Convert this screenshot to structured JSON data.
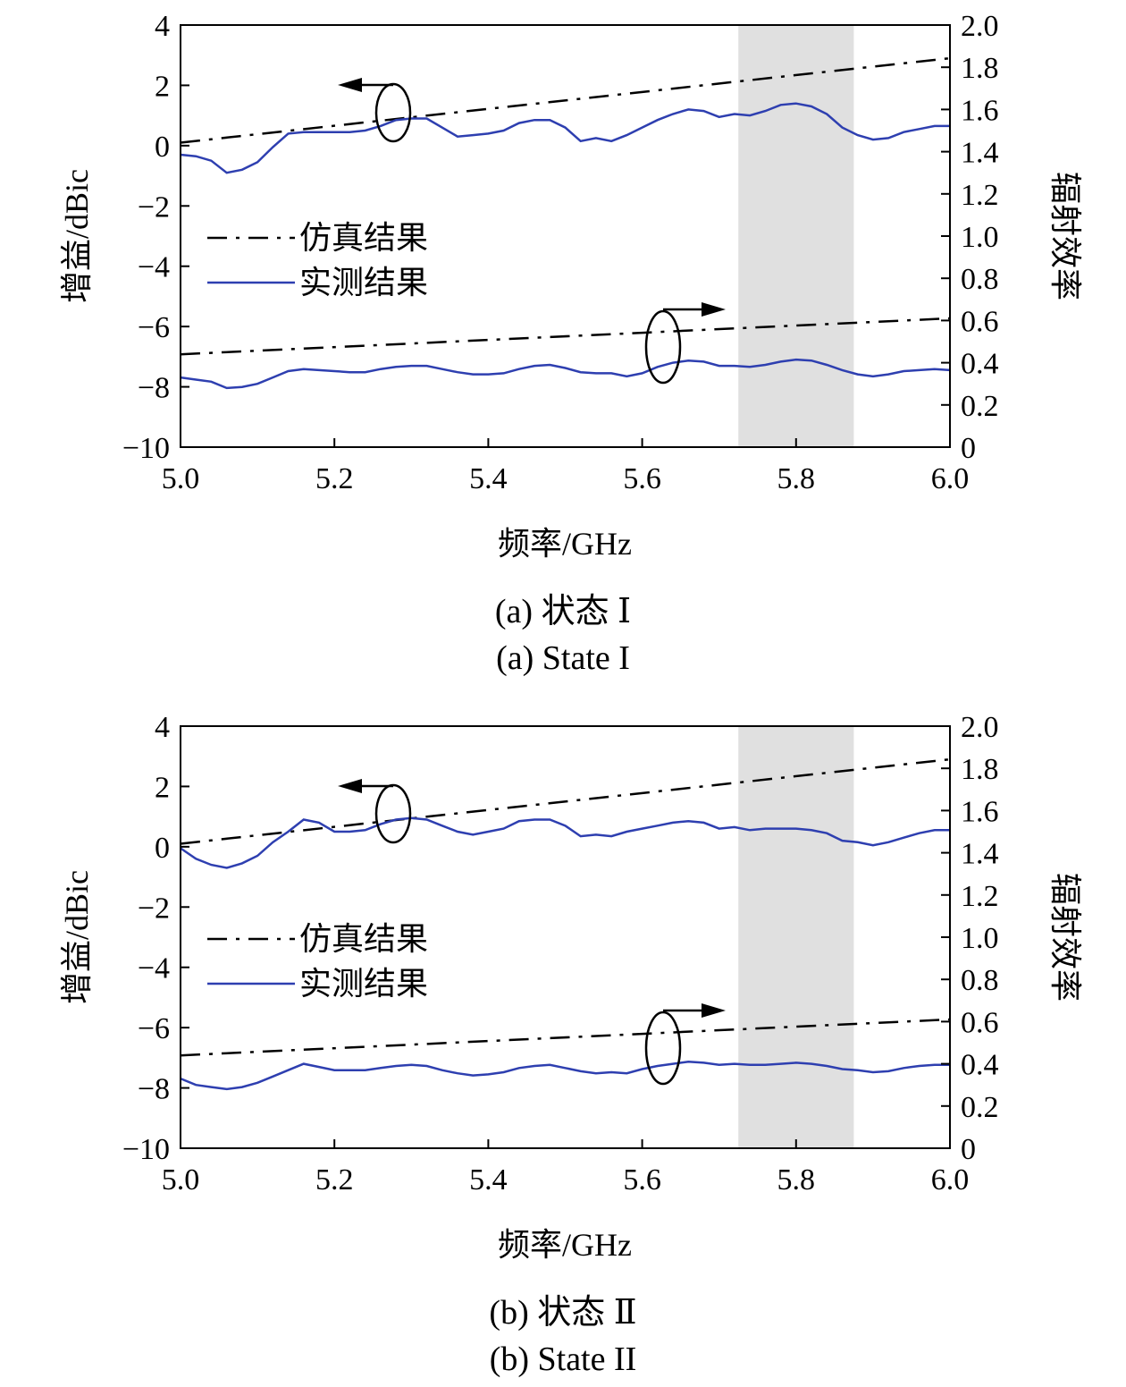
{
  "shared": {
    "xlabel": "频率/GHz",
    "ylabel_left": "增益/dBic",
    "ylabel_right": "辐射效率",
    "x_ticks": [
      "5.0",
      "5.2",
      "5.4",
      "5.6",
      "5.8",
      "6.0"
    ],
    "yl_ticks": [
      "4",
      "2",
      "0",
      "−2",
      "−4",
      "−6",
      "−8",
      "−10"
    ],
    "yr_ticks": [
      "2.0",
      "1.8",
      "1.6",
      "1.4",
      "1.2",
      "1.0",
      "0.8",
      "0.6",
      "0.4",
      "0.2",
      "0"
    ],
    "legend_sim": "仿真结果",
    "legend_meas": "实测结果"
  },
  "captions": {
    "a_cn": "(a) 状态 Ⅰ",
    "a_en": "(a) State I",
    "b_cn": "(b) 状态 Ⅱ",
    "b_en": "(b) State II"
  },
  "chart_data": [
    {
      "type": "line",
      "xlim": [
        5.0,
        6.0
      ],
      "ylim_left": [
        -10,
        4
      ],
      "ylim_right": [
        0,
        2.0
      ],
      "shaded_band_x": [
        5.725,
        5.875
      ],
      "shaded_color": "#e0e0e0",
      "measured_color": "#2e3fb0",
      "series": [
        {
          "name": "仿真结果",
          "axis": "left",
          "style": "dash-dot",
          "x": [
            5.0,
            6.0
          ],
          "y": [
            0.1,
            2.9
          ]
        },
        {
          "name": "实测结果",
          "axis": "left",
          "style": "solid",
          "x": [
            5.0,
            5.02,
            5.04,
            5.06,
            5.08,
            5.1,
            5.12,
            5.14,
            5.16,
            5.18,
            5.2,
            5.22,
            5.24,
            5.26,
            5.28,
            5.3,
            5.32,
            5.34,
            5.36,
            5.38,
            5.4,
            5.42,
            5.44,
            5.46,
            5.48,
            5.5,
            5.52,
            5.54,
            5.56,
            5.58,
            5.6,
            5.62,
            5.64,
            5.66,
            5.68,
            5.7,
            5.72,
            5.74,
            5.76,
            5.78,
            5.8,
            5.82,
            5.84,
            5.86,
            5.88,
            5.9,
            5.92,
            5.94,
            5.96,
            5.98,
            6.0
          ],
          "y": [
            -0.3,
            -0.35,
            -0.5,
            -0.9,
            -0.8,
            -0.55,
            -0.05,
            0.4,
            0.45,
            0.45,
            0.45,
            0.45,
            0.5,
            0.65,
            0.85,
            0.9,
            0.9,
            0.6,
            0.3,
            0.35,
            0.4,
            0.5,
            0.75,
            0.85,
            0.85,
            0.6,
            0.15,
            0.25,
            0.15,
            0.35,
            0.6,
            0.85,
            1.05,
            1.2,
            1.15,
            0.95,
            1.05,
            1.0,
            1.15,
            1.35,
            1.4,
            1.3,
            1.05,
            0.6,
            0.35,
            0.2,
            0.25,
            0.45,
            0.55,
            0.65,
            0.65
          ]
        },
        {
          "name": "仿真结果",
          "axis": "right",
          "style": "dash-dot",
          "x": [
            5.0,
            6.0
          ],
          "y": [
            0.44,
            0.61
          ]
        },
        {
          "name": "实测结果",
          "axis": "right",
          "style": "solid",
          "x": [
            5.0,
            5.02,
            5.04,
            5.06,
            5.08,
            5.1,
            5.12,
            5.14,
            5.16,
            5.18,
            5.2,
            5.22,
            5.24,
            5.26,
            5.28,
            5.3,
            5.32,
            5.34,
            5.36,
            5.38,
            5.4,
            5.42,
            5.44,
            5.46,
            5.48,
            5.5,
            5.52,
            5.54,
            5.56,
            5.58,
            5.6,
            5.62,
            5.64,
            5.66,
            5.68,
            5.7,
            5.72,
            5.74,
            5.76,
            5.78,
            5.8,
            5.82,
            5.84,
            5.86,
            5.88,
            5.9,
            5.92,
            5.94,
            5.96,
            5.98,
            6.0
          ],
          "y": [
            0.33,
            0.32,
            0.31,
            0.28,
            0.285,
            0.3,
            0.33,
            0.36,
            0.37,
            0.365,
            0.36,
            0.355,
            0.355,
            0.37,
            0.38,
            0.385,
            0.385,
            0.37,
            0.355,
            0.345,
            0.345,
            0.35,
            0.37,
            0.385,
            0.39,
            0.375,
            0.355,
            0.35,
            0.35,
            0.335,
            0.35,
            0.38,
            0.4,
            0.41,
            0.405,
            0.385,
            0.385,
            0.38,
            0.39,
            0.405,
            0.415,
            0.41,
            0.39,
            0.365,
            0.345,
            0.335,
            0.345,
            0.36,
            0.365,
            0.37,
            0.365
          ]
        }
      ]
    },
    {
      "type": "line",
      "xlim": [
        5.0,
        6.0
      ],
      "ylim_left": [
        -10,
        4
      ],
      "ylim_right": [
        0,
        2.0
      ],
      "shaded_band_x": [
        5.725,
        5.875
      ],
      "shaded_color": "#e0e0e0",
      "measured_color": "#2e3fb0",
      "series": [
        {
          "name": "仿真结果",
          "axis": "left",
          "style": "dash-dot",
          "x": [
            5.0,
            6.0
          ],
          "y": [
            0.1,
            2.9
          ]
        },
        {
          "name": "实测结果",
          "axis": "left",
          "style": "solid",
          "x": [
            5.0,
            5.02,
            5.04,
            5.06,
            5.08,
            5.1,
            5.12,
            5.14,
            5.16,
            5.18,
            5.2,
            5.22,
            5.24,
            5.26,
            5.28,
            5.3,
            5.32,
            5.34,
            5.36,
            5.38,
            5.4,
            5.42,
            5.44,
            5.46,
            5.48,
            5.5,
            5.52,
            5.54,
            5.56,
            5.58,
            5.6,
            5.62,
            5.64,
            5.66,
            5.68,
            5.7,
            5.72,
            5.74,
            5.76,
            5.78,
            5.8,
            5.82,
            5.84,
            5.86,
            5.88,
            5.9,
            5.92,
            5.94,
            5.96,
            5.98,
            6.0
          ],
          "y": [
            -0.05,
            -0.4,
            -0.6,
            -0.7,
            -0.55,
            -0.3,
            0.15,
            0.5,
            0.9,
            0.8,
            0.5,
            0.5,
            0.55,
            0.75,
            0.9,
            0.95,
            0.9,
            0.7,
            0.5,
            0.4,
            0.5,
            0.6,
            0.85,
            0.9,
            0.9,
            0.7,
            0.35,
            0.4,
            0.35,
            0.5,
            0.6,
            0.7,
            0.8,
            0.85,
            0.8,
            0.6,
            0.65,
            0.55,
            0.6,
            0.6,
            0.6,
            0.55,
            0.45,
            0.2,
            0.15,
            0.05,
            0.15,
            0.3,
            0.45,
            0.55,
            0.55
          ]
        },
        {
          "name": "仿真结果",
          "axis": "right",
          "style": "dash-dot",
          "x": [
            5.0,
            6.0
          ],
          "y": [
            0.44,
            0.61
          ]
        },
        {
          "name": "实测结果",
          "axis": "right",
          "style": "solid",
          "x": [
            5.0,
            5.02,
            5.04,
            5.06,
            5.08,
            5.1,
            5.12,
            5.14,
            5.16,
            5.18,
            5.2,
            5.22,
            5.24,
            5.26,
            5.28,
            5.3,
            5.32,
            5.34,
            5.36,
            5.38,
            5.4,
            5.42,
            5.44,
            5.46,
            5.48,
            5.5,
            5.52,
            5.54,
            5.56,
            5.58,
            5.6,
            5.62,
            5.64,
            5.66,
            5.68,
            5.7,
            5.72,
            5.74,
            5.76,
            5.78,
            5.8,
            5.82,
            5.84,
            5.86,
            5.88,
            5.9,
            5.92,
            5.94,
            5.96,
            5.98,
            6.0
          ],
          "y": [
            0.33,
            0.3,
            0.29,
            0.28,
            0.29,
            0.31,
            0.34,
            0.37,
            0.4,
            0.385,
            0.37,
            0.37,
            0.37,
            0.38,
            0.39,
            0.395,
            0.39,
            0.37,
            0.355,
            0.345,
            0.35,
            0.36,
            0.38,
            0.39,
            0.395,
            0.38,
            0.365,
            0.355,
            0.36,
            0.355,
            0.375,
            0.39,
            0.4,
            0.41,
            0.405,
            0.395,
            0.4,
            0.395,
            0.395,
            0.4,
            0.405,
            0.4,
            0.39,
            0.375,
            0.37,
            0.36,
            0.365,
            0.38,
            0.39,
            0.395,
            0.395
          ]
        }
      ]
    }
  ]
}
